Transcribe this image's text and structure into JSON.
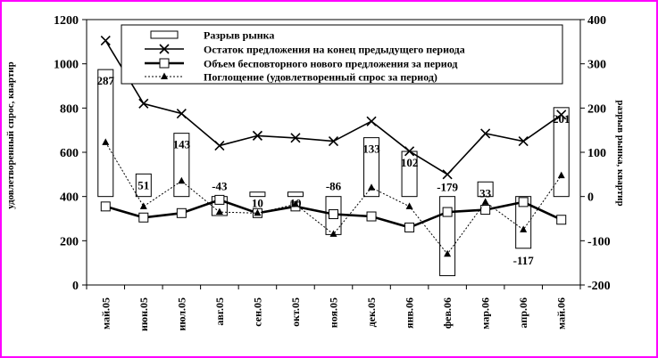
{
  "chart_data": {
    "type": "line",
    "categories": [
      "май.05",
      "июн.05",
      "июл.05",
      "авг.05",
      "сен.05",
      "окт.05",
      "ноя.05",
      "дек.05",
      "янв.06",
      "фев.06",
      "мар.06",
      "апр.06",
      "май.06"
    ],
    "ylabel_left": "удовлетворенный спрос, квартир",
    "ylabel_right": "разрыв рынка, квартир",
    "ylim_left": [
      0,
      1200
    ],
    "yticks_left": [
      0,
      200,
      400,
      600,
      800,
      1000,
      1200
    ],
    "ylim_right": [
      -200,
      400
    ],
    "yticks_right": [
      -200,
      -100,
      0,
      100,
      200,
      300,
      400
    ],
    "legend_position": "top-center",
    "series": [
      {
        "name": "Разрыв рынка",
        "axis": "right",
        "kind": "bar",
        "values": [
          287,
          51,
          143,
          -43,
          10,
          10,
          -86,
          133,
          102,
          -179,
          33,
          -117,
          201
        ],
        "labels": [
          "287",
          "51",
          "143",
          "-43",
          "10",
          "10",
          "-86",
          "133",
          "102",
          "-179",
          "33",
          "-117",
          "201"
        ]
      },
      {
        "name": "Остаток предложения на конец предыдущего периода",
        "axis": "left",
        "kind": "line",
        "marker": "x",
        "values": [
          1105,
          820,
          775,
          630,
          675,
          665,
          650,
          740,
          605,
          500,
          685,
          650,
          770
        ]
      },
      {
        "name": "Объем бесповторного нового предложения за период",
        "axis": "left",
        "kind": "line",
        "marker": "square",
        "values": [
          355,
          305,
          325,
          385,
          325,
          355,
          320,
          310,
          260,
          330,
          340,
          375,
          295
        ]
      },
      {
        "name": "Поглощение (удовлетворенный спрос за период)",
        "axis": "left",
        "kind": "line",
        "marker": "triangle",
        "values": [
          645,
          355,
          470,
          330,
          325,
          365,
          230,
          440,
          355,
          140,
          375,
          250,
          495
        ]
      }
    ]
  }
}
